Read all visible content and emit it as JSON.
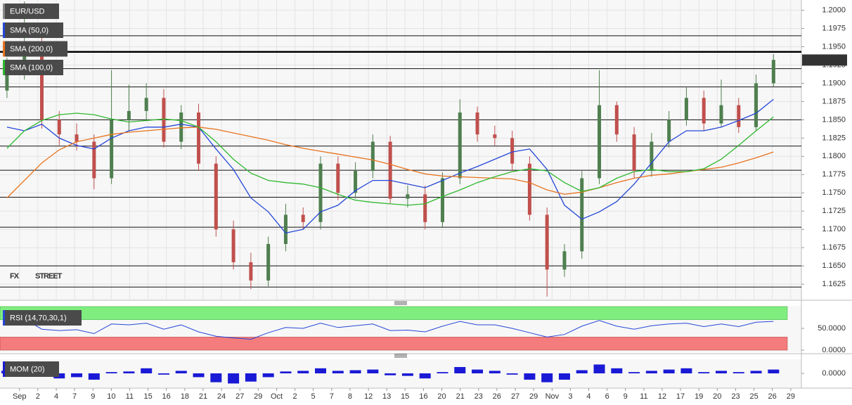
{
  "chart_data": [
    {
      "type": "candlestick",
      "title": "EUR/USD",
      "open": [
        1.189,
        1.1917,
        1.1955,
        1.185,
        1.183,
        1.182,
        1.177,
        1.185,
        1.1862,
        1.188,
        1.182,
        1.186,
        1.179,
        1.17,
        1.1655,
        1.163,
        1.168,
        1.172,
        1.171,
        1.179,
        1.175,
        1.178,
        1.182,
        1.1742,
        1.1748,
        1.171,
        1.177,
        1.186,
        1.183,
        1.1825,
        1.179,
        1.172,
        1.1645,
        1.167,
        1.177,
        1.187,
        1.183,
        1.178,
        1.182,
        1.185,
        1.188,
        1.1845,
        1.187,
        1.184,
        1.19
      ],
      "high": [
        1.1935,
        1.2012,
        1.1965,
        1.1862,
        1.1845,
        1.183,
        1.1918,
        1.1898,
        1.19,
        1.1892,
        1.187,
        1.1872,
        1.18,
        1.1712,
        1.1668,
        1.169,
        1.1735,
        1.173,
        1.18,
        1.18,
        1.1792,
        1.183,
        1.1828,
        1.176,
        1.176,
        1.1778,
        1.1878,
        1.1868,
        1.1842,
        1.1835,
        1.18,
        1.173,
        1.168,
        1.178,
        1.1918,
        1.1875,
        1.184,
        1.1832,
        1.1862,
        1.1895,
        1.189,
        1.1905,
        1.188,
        1.1912,
        1.194
      ],
      "low": [
        1.188,
        1.1905,
        1.1838,
        1.1815,
        1.1808,
        1.1755,
        1.1762,
        1.1835,
        1.1848,
        1.1812,
        1.181,
        1.178,
        1.169,
        1.1645,
        1.1618,
        1.1622,
        1.167,
        1.17,
        1.17,
        1.174,
        1.1742,
        1.177,
        1.1735,
        1.173,
        1.17,
        1.1702,
        1.1762,
        1.182,
        1.1815,
        1.178,
        1.1712,
        1.1608,
        1.1635,
        1.166,
        1.1762,
        1.182,
        1.177,
        1.1772,
        1.1812,
        1.1842,
        1.1835,
        1.184,
        1.1832,
        1.1835,
        1.1895
      ],
      "close": [
        1.1917,
        1.1955,
        1.185,
        1.183,
        1.182,
        1.177,
        1.185,
        1.1862,
        1.188,
        1.182,
        1.186,
        1.179,
        1.17,
        1.1655,
        1.163,
        1.168,
        1.172,
        1.171,
        1.179,
        1.175,
        1.178,
        1.182,
        1.1742,
        1.1748,
        1.171,
        1.177,
        1.186,
        1.183,
        1.1825,
        1.179,
        1.172,
        1.1645,
        1.167,
        1.177,
        1.187,
        1.183,
        1.178,
        1.182,
        1.185,
        1.188,
        1.1845,
        1.187,
        1.184,
        1.19,
        1.1932
      ],
      "up_color": "#4f7f4f",
      "down_color": "#c0504d",
      "series": [
        {
          "name": "SMA (50,0)",
          "color": "#2447d8",
          "values": [
            1.184,
            1.1835,
            1.1844,
            1.1825,
            1.1815,
            1.181,
            1.1825,
            1.1835,
            1.184,
            1.184,
            1.1844,
            1.184,
            1.181,
            1.1782,
            1.1743,
            1.1724,
            1.1695,
            1.17,
            1.1724,
            1.1733,
            1.1753,
            1.1767,
            1.1767,
            1.1762,
            1.1757,
            1.1767,
            1.1777,
            1.1786,
            1.1796,
            1.1806,
            1.181,
            1.1782,
            1.1733,
            1.1714,
            1.1724,
            1.1738,
            1.1762,
            1.1791,
            1.182,
            1.1835,
            1.1835,
            1.184,
            1.1849,
            1.1859,
            1.1878
          ]
        },
        {
          "name": "SMA (200,0)",
          "color": "#e8731e",
          "values": [
            1.1743,
            1.1767,
            1.1791,
            1.1809,
            1.182,
            1.1825,
            1.183,
            1.1833,
            1.1835,
            1.1837,
            1.1839,
            1.184,
            1.1837,
            1.1832,
            1.1827,
            1.1822,
            1.1816,
            1.1811,
            1.1807,
            1.1803,
            1.1799,
            1.1795,
            1.1789,
            1.1782,
            1.1776,
            1.1773,
            1.1772,
            1.1771,
            1.177,
            1.1769,
            1.1764,
            1.1754,
            1.1748,
            1.1751,
            1.1757,
            1.1764,
            1.177,
            1.1774,
            1.1776,
            1.1779,
            1.1782,
            1.1785,
            1.1791,
            1.1798,
            1.1806
          ]
        },
        {
          "name": "SMA (100,0)",
          "color": "#2db82d",
          "values": [
            1.1811,
            1.1835,
            1.1849,
            1.1857,
            1.1859,
            1.1857,
            1.1851,
            1.1847,
            1.1849,
            1.1851,
            1.1849,
            1.184,
            1.182,
            1.1796,
            1.1777,
            1.1767,
            1.1764,
            1.1762,
            1.1757,
            1.1748,
            1.174,
            1.1737,
            1.1735,
            1.1733,
            1.1735,
            1.1745,
            1.1754,
            1.1764,
            1.1772,
            1.1779,
            1.1783,
            1.178,
            1.1764,
            1.1752,
            1.1757,
            1.177,
            1.1779,
            1.1782,
            1.1779,
            1.1779,
            1.1783,
            1.1796,
            1.1815,
            1.1835,
            1.1854
          ]
        }
      ],
      "levels": [
        1.1965,
        1.192,
        1.1895,
        1.185,
        1.1814,
        1.1781,
        1.1744,
        1.1703,
        1.165,
        1.1621
      ],
      "strong_level": 1.1943,
      "last_price": {
        "value": 1.19318,
        "label": "1.19318"
      },
      "watermark": [
        "FX",
        "STREET"
      ],
      "grid": true,
      "xlim": [
        -0.4,
        45.6
      ],
      "ylim": [
        1.1603,
        1.2014
      ],
      "yticks": [
        {
          "value": 1.2,
          "label": "1.2000"
        },
        {
          "value": 1.1975,
          "label": "1.1975"
        },
        {
          "value": 1.195,
          "label": "1.1950"
        },
        {
          "value": 1.1925,
          "label": "1.1925"
        },
        {
          "value": 1.19,
          "label": "1.1900"
        },
        {
          "value": 1.1875,
          "label": "1.1875"
        },
        {
          "value": 1.185,
          "label": "1.1850"
        },
        {
          "value": 1.1825,
          "label": "1.1825"
        },
        {
          "value": 1.18,
          "label": "1.1800"
        },
        {
          "value": 1.1775,
          "label": "1.1775"
        },
        {
          "value": 1.175,
          "label": "1.1750"
        },
        {
          "value": 1.1725,
          "label": "1.1725"
        },
        {
          "value": 1.17,
          "label": "1.1700"
        },
        {
          "value": 1.1675,
          "label": "1.1675"
        },
        {
          "value": 1.165,
          "label": "1.1650"
        },
        {
          "value": 1.1625,
          "label": "1.1625"
        }
      ],
      "xticks": [
        {
          "value": 0.72,
          "label": "Sep"
        },
        {
          "value": 1.77,
          "label": "2"
        },
        {
          "value": 2.83,
          "label": "4"
        },
        {
          "value": 3.88,
          "label": "7"
        },
        {
          "value": 4.94,
          "label": "9"
        },
        {
          "value": 5.99,
          "label": "10"
        },
        {
          "value": 7.04,
          "label": "11"
        },
        {
          "value": 8.1,
          "label": "15"
        },
        {
          "value": 9.15,
          "label": "16"
        },
        {
          "value": 10.21,
          "label": "18"
        },
        {
          "value": 11.26,
          "label": "21"
        },
        {
          "value": 12.31,
          "label": "24"
        },
        {
          "value": 13.37,
          "label": "27"
        },
        {
          "value": 14.42,
          "label": "29"
        },
        {
          "value": 15.48,
          "label": "Oct"
        },
        {
          "value": 16.53,
          "label": "2"
        },
        {
          "value": 17.58,
          "label": "5"
        },
        {
          "value": 18.64,
          "label": "7"
        },
        {
          "value": 19.69,
          "label": "8"
        },
        {
          "value": 20.75,
          "label": "12"
        },
        {
          "value": 21.8,
          "label": "13"
        },
        {
          "value": 22.85,
          "label": "15"
        },
        {
          "value": 23.91,
          "label": "16"
        },
        {
          "value": 24.96,
          "label": "20"
        },
        {
          "value": 26.02,
          "label": "21"
        },
        {
          "value": 27.07,
          "label": "23"
        },
        {
          "value": 28.12,
          "label": "26"
        },
        {
          "value": 29.18,
          "label": "27"
        },
        {
          "value": 30.23,
          "label": "29"
        },
        {
          "value": 31.29,
          "label": "Nov"
        },
        {
          "value": 32.34,
          "label": "3"
        },
        {
          "value": 33.39,
          "label": "4"
        },
        {
          "value": 34.45,
          "label": "6"
        },
        {
          "value": 35.5,
          "label": "9"
        },
        {
          "value": 36.56,
          "label": "11"
        },
        {
          "value": 37.61,
          "label": "12"
        },
        {
          "value": 38.66,
          "label": "17"
        },
        {
          "value": 39.72,
          "label": "19"
        },
        {
          "value": 40.77,
          "label": "20"
        },
        {
          "value": 41.83,
          "label": "23"
        },
        {
          "value": 42.88,
          "label": "25"
        },
        {
          "value": 43.93,
          "label": "26"
        },
        {
          "value": 44.99,
          "label": "29"
        }
      ]
    },
    {
      "type": "rsi",
      "title": "RSI (14,70,30,1)",
      "color": "#2447d8",
      "values": [
        65,
        72,
        48,
        45,
        47,
        38,
        60,
        58,
        62,
        48,
        58,
        42,
        32,
        28,
        25,
        40,
        52,
        50,
        62,
        52,
        56,
        60,
        45,
        46,
        42,
        55,
        66,
        58,
        58,
        50,
        40,
        30,
        36,
        55,
        68,
        55,
        48,
        56,
        60,
        62,
        54,
        60,
        54,
        64,
        66
      ],
      "overbought": 70,
      "oversold": 30,
      "band_colors": [
        "#7fee7f",
        "#f47c7c"
      ],
      "ylim": [
        0,
        100
      ],
      "yticks": [
        {
          "value": 50,
          "label": "50.0000"
        },
        {
          "value": 0,
          "label": "0.0000"
        }
      ]
    },
    {
      "type": "momentum",
      "title": "MOM (20)",
      "color": "#1a1ad6",
      "values": [
        0.004,
        0.006,
        -0.004,
        -0.008,
        -0.006,
        -0.01,
        0.002,
        0.003,
        0.008,
        -0.002,
        0.004,
        -0.006,
        -0.014,
        -0.016,
        -0.013,
        -0.006,
        0.003,
        0.004,
        0.008,
        0.004,
        0.005,
        0.006,
        -0.003,
        -0.004,
        -0.008,
        0.002,
        0.01,
        0.006,
        0.004,
        -0.002,
        -0.01,
        -0.014,
        -0.01,
        0.005,
        0.014,
        0.008,
        0.002,
        0.004,
        0.006,
        0.008,
        0.002,
        0.004,
        0.002,
        0.004,
        0.006
      ],
      "ylim": [
        -0.02,
        0.02
      ],
      "yticks": [
        {
          "value": 0,
          "label": "0.0000"
        }
      ]
    }
  ]
}
